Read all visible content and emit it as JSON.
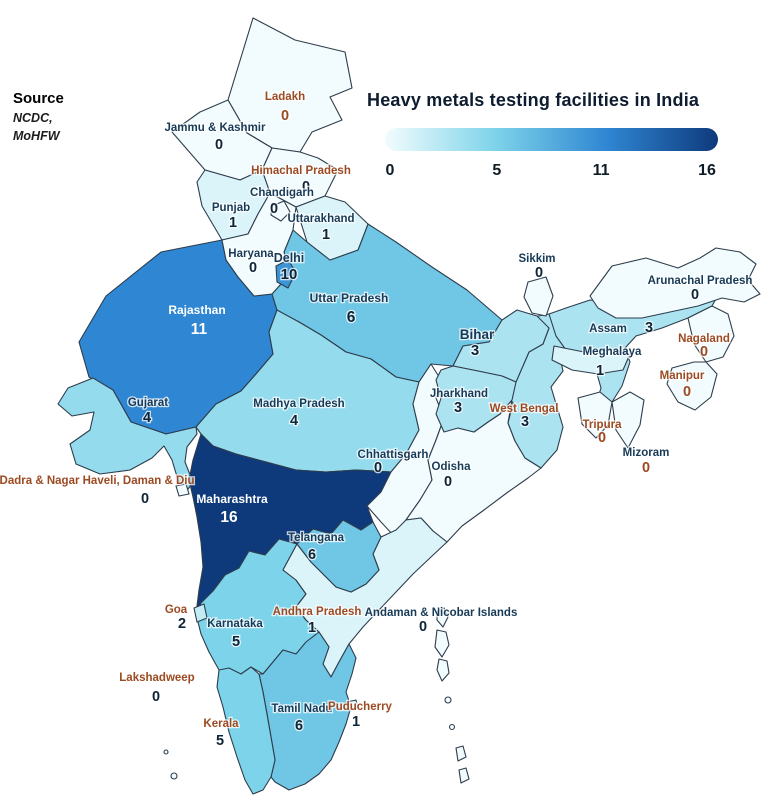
{
  "title": "Heavy metals testing facilities in India",
  "source": {
    "heading": "Source",
    "lines": [
      "NCDC,",
      "MoHFW"
    ]
  },
  "legend": {
    "tick_labels": [
      "0",
      "5",
      "11",
      "16"
    ]
  },
  "colors": {
    "background": "#ffffff",
    "border": "#2e3d4c",
    "title_text": "#0d1c2e",
    "tick_text": "#0e1c26",
    "name_navy": "#173a57",
    "name_brown": "#9c4a22",
    "value_dark": "#0e2537",
    "white": "#ffffff"
  },
  "chart_data": {
    "type": "heatmap",
    "subtype": "choropleth-map-of-india",
    "title": "Heavy metals testing facilities in India",
    "source": "NCDC, MoHFW",
    "legend_position": "top-right",
    "scale": {
      "min": 0,
      "max": 16,
      "legend_tick_values": [
        0,
        5,
        11,
        16
      ],
      "stop_values": [
        0,
        5,
        11,
        16
      ],
      "stop_colors": [
        "#f2fcfe",
        "#7dd3e9",
        "#2f86d2",
        "#0e3a7c"
      ]
    },
    "regions": [
      {
        "id": "rajasthan",
        "name": "Rajasthan",
        "value": 11,
        "name_color": "white",
        "value_color": "white"
      },
      {
        "id": "up",
        "name": "Uttar Pradesh",
        "value": 6,
        "name_color": "navy",
        "value_color": "dark"
      },
      {
        "id": "mp",
        "name": "Madhya Pradesh",
        "value": 4,
        "name_color": "navy",
        "value_color": "dark"
      },
      {
        "id": "gujarat",
        "name": "Gujarat",
        "value": 4,
        "name_color": "navy",
        "value_color": "dark"
      },
      {
        "id": "maharashtra",
        "name": "Maharashtra",
        "value": 16,
        "name_color": "white",
        "value_color": "white"
      },
      {
        "id": "chhattisgarh",
        "name": "Chhattisgarh",
        "value": 0,
        "name_color": "navy",
        "value_color": "dark"
      },
      {
        "id": "odisha",
        "name": "Odisha",
        "value": 0,
        "name_color": "navy",
        "value_color": "dark"
      },
      {
        "id": "wb",
        "name": "West Bengal",
        "value": 3,
        "name_color": "brown",
        "value_color": "dark"
      },
      {
        "id": "bihar",
        "name": "Bihar",
        "value": 3,
        "name_color": "navy",
        "value_color": "dark"
      },
      {
        "id": "jharkhand",
        "name": "Jharkhand",
        "value": 3,
        "name_color": "navy",
        "value_color": "dark"
      },
      {
        "id": "assam",
        "name": "Assam",
        "value": 3,
        "name_color": "navy",
        "value_color": "dark"
      },
      {
        "id": "arunachal",
        "name": "Arunachal Pradesh",
        "value": 0,
        "name_color": "navy",
        "value_color": "dark"
      },
      {
        "id": "karnataka",
        "name": "Karnataka",
        "value": 5,
        "name_color": "navy",
        "value_color": "dark"
      },
      {
        "id": "ap",
        "name": "Andhra Pradesh",
        "value": 1,
        "name_color": "brown",
        "value_color": "dark"
      },
      {
        "id": "tn",
        "name": "Tamil Nadu",
        "value": 6,
        "name_color": "navy",
        "value_color": "dark"
      },
      {
        "id": "kerala",
        "name": "Kerala",
        "value": 5,
        "name_color": "brown",
        "value_color": "dark"
      },
      {
        "id": "telangana",
        "name": "Telangana",
        "value": 6,
        "name_color": "navy",
        "value_color": "dark"
      },
      {
        "id": "ladakh",
        "name": "Ladakh",
        "value": 0,
        "name_color": "brown",
        "value_color": "brown"
      },
      {
        "id": "jk",
        "name": "Jammu & Kashmir",
        "value": 0,
        "name_color": "navy",
        "value_color": "dark"
      },
      {
        "id": "hp",
        "name": "Himachal Pradesh",
        "value": 0,
        "name_color": "brown",
        "value_color": "dark"
      },
      {
        "id": "punjab",
        "name": "Punjab",
        "value": 1,
        "name_color": "navy",
        "value_color": "dark"
      },
      {
        "id": "uttarakhand",
        "name": "Uttarakhand",
        "value": 1,
        "name_color": "navy",
        "value_color": "dark"
      },
      {
        "id": "haryana",
        "name": "Haryana",
        "value": 0,
        "name_color": "navy",
        "value_color": "dark"
      },
      {
        "id": "sikkim",
        "name": "Sikkim",
        "value": 0,
        "name_color": "navy",
        "value_color": "dark"
      },
      {
        "id": "meghalaya",
        "name": "Meghalaya",
        "value": 1,
        "name_color": "navy",
        "value_color": "dark"
      },
      {
        "id": "nagaland",
        "name": "Nagaland",
        "value": 0,
        "name_color": "brown",
        "value_color": "brown"
      },
      {
        "id": "manipur",
        "name": "Manipur",
        "value": 0,
        "name_color": "brown",
        "value_color": "brown"
      },
      {
        "id": "tripura",
        "name": "Tripura",
        "value": 0,
        "name_color": "brown",
        "value_color": "brown"
      },
      {
        "id": "mizoram",
        "name": "Mizoram",
        "value": 0,
        "name_color": "navy",
        "value_color": "brown"
      },
      {
        "id": "goa",
        "name": "Goa",
        "value": 2,
        "name_color": "brown",
        "value_color": "dark"
      },
      {
        "id": "delhi",
        "name": "Delhi",
        "value": 10,
        "name_color": "navy",
        "value_color": "dark"
      },
      {
        "id": "chandigarh",
        "name": "Chandigarh",
        "value": 0,
        "name_color": "navy",
        "value_color": "dark"
      },
      {
        "id": "dnh",
        "name": "Dadra & Nagar Haveli, Daman & Diu",
        "value": 0,
        "name_color": "brown",
        "value_color": "dark"
      },
      {
        "id": "puducherry",
        "name": "Puducherry",
        "value": 1,
        "name_color": "brown",
        "value_color": "dark"
      },
      {
        "id": "lakshadweep",
        "name": "Lakshadweep",
        "value": 0,
        "name_color": "brown",
        "value_color": "dark"
      },
      {
        "id": "andaman",
        "name": "Andaman & Nicobar Islands",
        "value": 0,
        "name_color": "navy",
        "value_color": "dark"
      }
    ]
  }
}
